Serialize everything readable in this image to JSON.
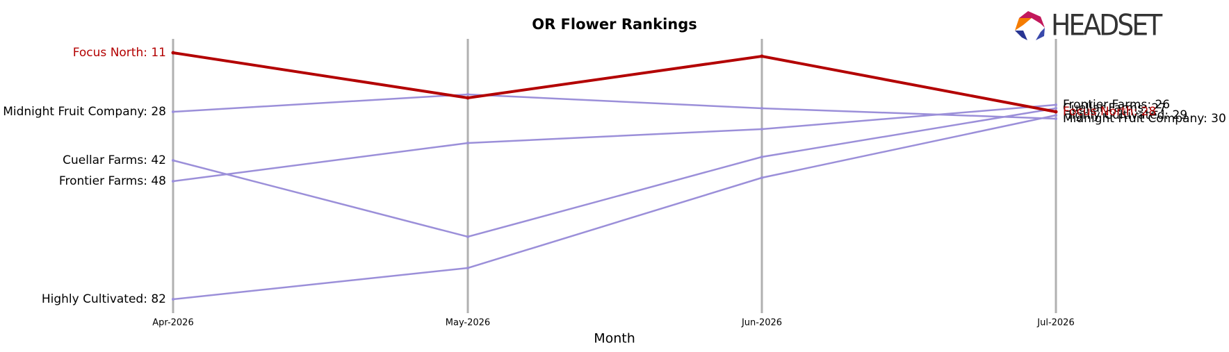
{
  "chart_data": {
    "type": "bump",
    "title": "OR Flower Rankings",
    "x_label": "Month",
    "categories": [
      "Apr-2026",
      "May-2026",
      "Jun-2026",
      "Jul-2026"
    ],
    "ylim": [
      7,
      86
    ],
    "y_inverted": true,
    "logo": "HEADSET",
    "series": [
      {
        "name": "Midnight Fruit Company",
        "color": "#9b8fd9",
        "label_color": "#000000",
        "values": [
          28,
          23,
          27,
          30
        ],
        "value_labels": [
          "Midnight Fruit Company: 28",
          null,
          null,
          "Midnight Fruit Company: 30"
        ]
      },
      {
        "name": "Cuellar Farms",
        "color": "#9b8fd9",
        "label_color": "#000000",
        "values": [
          42,
          64,
          41,
          27
        ],
        "value_labels": [
          "Cuellar Farms: 42",
          null,
          null,
          "Cuellar Farms: 27"
        ]
      },
      {
        "name": "Frontier Farms",
        "color": "#9b8fd9",
        "label_color": "#000000",
        "values": [
          48,
          37,
          33,
          26
        ],
        "value_labels": [
          "Frontier Farms: 48",
          null,
          null,
          "Frontier Farms: 26"
        ]
      },
      {
        "name": "Highly Cultivated",
        "color": "#9b8fd9",
        "label_color": "#000000",
        "values": [
          82,
          73,
          47,
          29
        ],
        "value_labels": [
          "Highly Cultivated: 82",
          null,
          null,
          "Highly Cultivated: 29"
        ]
      },
      {
        "name": "Focus North",
        "color": "#b30000",
        "label_color": "#b30000",
        "highlight": true,
        "values": [
          11,
          24,
          12,
          28
        ],
        "value_labels": [
          "Focus North: 11",
          null,
          null,
          "Focus North: 28"
        ]
      }
    ]
  }
}
